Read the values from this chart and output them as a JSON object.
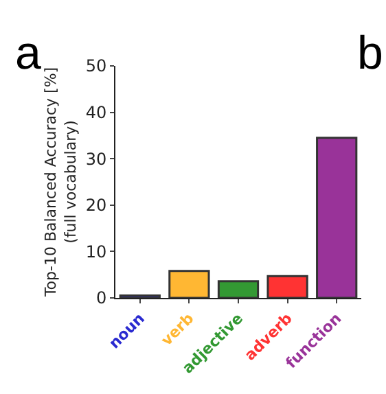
{
  "chart_data": {
    "type": "bar",
    "ylabel": "Top-10 Balanced Accuracy [%]\n(full vocabulary)",
    "categories": [
      "noun",
      "verb",
      "adjective",
      "adverb",
      "function"
    ],
    "values": [
      0.5,
      5.8,
      3.6,
      4.7,
      34.5
    ],
    "colors": [
      "#2a2ad0",
      "#ffb733",
      "#339933",
      "#ff3333",
      "#993399"
    ],
    "ylim": [
      0,
      50
    ],
    "yticks": [
      0,
      10,
      20,
      30,
      40,
      50
    ],
    "grid": false,
    "annotations": [
      "a",
      "b"
    ]
  }
}
